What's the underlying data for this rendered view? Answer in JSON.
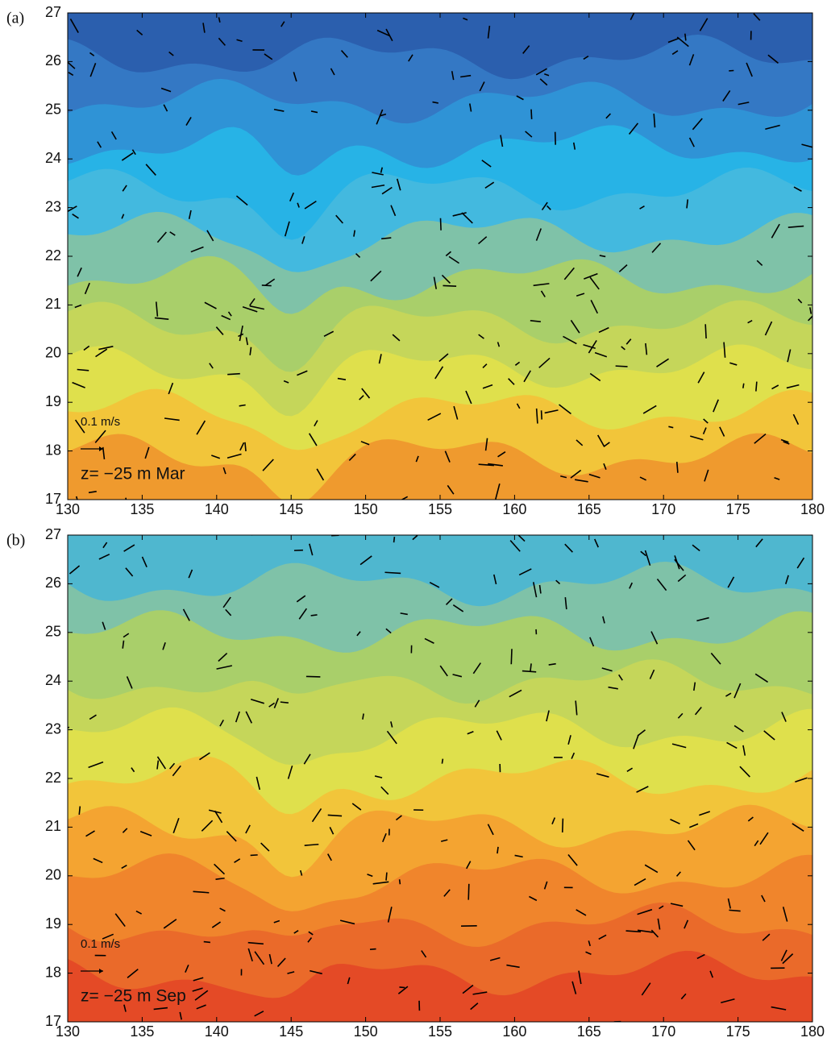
{
  "chart_data": [
    {
      "type": "contour",
      "panel_label": "(a)",
      "annotation": "z= −25 m Mar",
      "scale_label": "0.1 m/s",
      "xlim": [
        130,
        180
      ],
      "ylim": [
        17,
        27
      ],
      "xticks": [
        130,
        135,
        140,
        145,
        150,
        155,
        160,
        165,
        170,
        175,
        180
      ],
      "yticks": [
        17,
        18,
        19,
        20,
        21,
        22,
        23,
        24,
        25,
        26,
        27
      ],
      "colors": [
        "#2b5fae",
        "#3478c4",
        "#2f93d6",
        "#27b3e6",
        "#43b9df",
        "#7fc2a8",
        "#a9cf6a",
        "#c5d65a",
        "#dfe04c",
        "#f2c53a",
        "#ef9a2e"
      ]
    },
    {
      "type": "contour",
      "panel_label": "(b)",
      "annotation": "z= −25 m Sep",
      "scale_label": "0.1 m/s",
      "xlim": [
        130,
        180
      ],
      "ylim": [
        17,
        27
      ],
      "xticks": [
        130,
        135,
        140,
        145,
        150,
        155,
        160,
        165,
        170,
        175,
        180
      ],
      "yticks": [
        17,
        18,
        19,
        20,
        21,
        22,
        23,
        24,
        25,
        26,
        27
      ],
      "colors": [
        "#4fb7cf",
        "#7fc2a8",
        "#a9cf6a",
        "#c5d65a",
        "#dfe04c",
        "#f2c53a",
        "#f4a431",
        "#f0852c",
        "#ea6a2a",
        "#e44a26"
      ]
    }
  ]
}
